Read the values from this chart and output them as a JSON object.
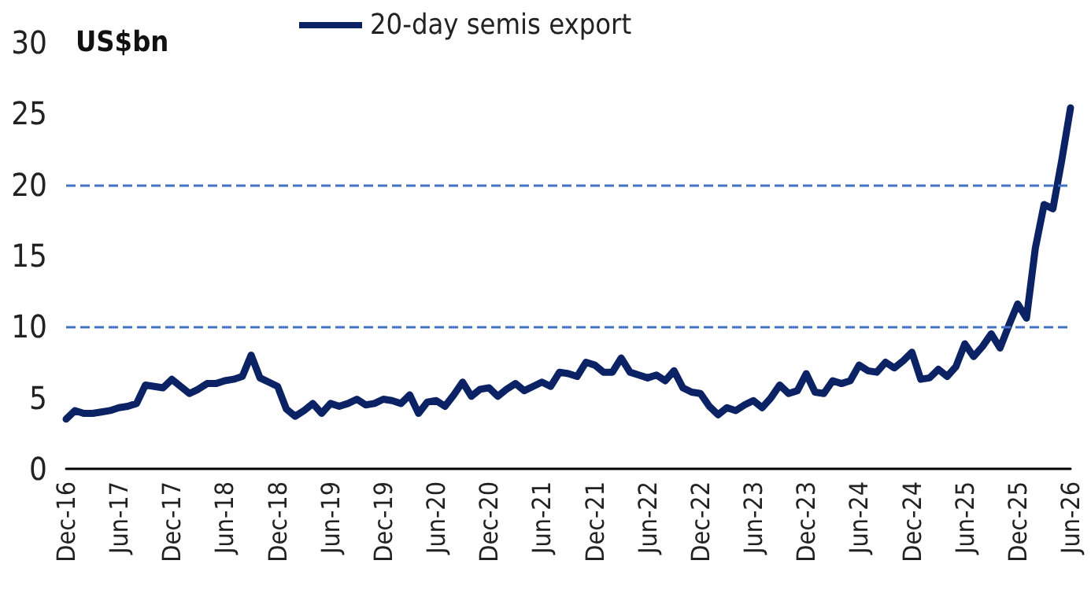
{
  "chart_data": {
    "type": "line",
    "ylabel": "US$bn",
    "categories": [
      "Dec-16",
      null,
      null,
      null,
      null,
      null,
      "Jun-17",
      null,
      null,
      null,
      null,
      null,
      "Dec-17",
      null,
      null,
      null,
      null,
      null,
      "Jun-18",
      null,
      null,
      null,
      null,
      null,
      "Dec-18",
      null,
      null,
      null,
      null,
      null,
      "Jun-19",
      null,
      null,
      null,
      null,
      null,
      "Dec-19",
      null,
      null,
      null,
      null,
      null,
      "Jun-20",
      null,
      null,
      null,
      null,
      null,
      "Dec-20",
      null,
      null,
      null,
      null,
      null,
      "Jun-21",
      null,
      null,
      null,
      null,
      null,
      "Dec-21",
      null,
      null,
      null,
      null,
      null,
      "Jun-22",
      null,
      null,
      null,
      null,
      null,
      "Dec-22",
      null,
      null,
      null,
      null,
      null,
      "Jun-23",
      null,
      null,
      null,
      null,
      null,
      "Dec-23",
      null,
      null,
      null,
      null,
      null,
      "Jun-24",
      null,
      null,
      null,
      null,
      null,
      "Dec-24",
      null,
      null,
      null,
      null,
      null,
      "Jun-25",
      null,
      null,
      null,
      null,
      null,
      "Dec-25",
      null,
      null,
      null,
      null,
      null,
      "Jun-26"
    ],
    "series": [
      {
        "name": "20-day semis export",
        "color": "#0b2265",
        "values": [
          3.5,
          4.1,
          3.9,
          3.9,
          4.0,
          4.1,
          4.3,
          4.4,
          4.6,
          5.9,
          5.8,
          5.7,
          6.3,
          5.8,
          5.3,
          5.6,
          6.0,
          6.0,
          6.2,
          6.3,
          6.5,
          8.0,
          6.4,
          6.1,
          5.8,
          4.2,
          3.7,
          4.1,
          4.6,
          3.9,
          4.6,
          4.4,
          4.6,
          4.9,
          4.5,
          4.6,
          4.9,
          4.8,
          4.6,
          5.2,
          3.9,
          4.7,
          4.8,
          4.4,
          5.2,
          6.1,
          5.1,
          5.6,
          5.7,
          5.1,
          5.6,
          6.0,
          5.5,
          5.8,
          6.1,
          5.8,
          6.8,
          6.7,
          6.5,
          7.5,
          7.3,
          6.8,
          6.8,
          7.8,
          6.8,
          6.6,
          6.4,
          6.6,
          6.2,
          6.9,
          5.7,
          5.4,
          5.3,
          4.4,
          3.8,
          4.3,
          4.1,
          4.5,
          4.8,
          4.3,
          5.0,
          5.9,
          5.3,
          5.5,
          6.7,
          5.4,
          5.3,
          6.2,
          6.0,
          6.2,
          7.3,
          6.9,
          6.8,
          7.5,
          7.1,
          7.6,
          8.2,
          6.3,
          6.4,
          7.0,
          6.5,
          7.2,
          8.8,
          7.9,
          8.6,
          9.5,
          8.5,
          10.1,
          11.6,
          10.6,
          15.5,
          18.6,
          18.3,
          21.7,
          25.4
        ]
      }
    ],
    "ylim": [
      0,
      30
    ],
    "yticks": [
      0,
      5,
      10,
      15,
      20,
      25,
      30
    ],
    "ref_lines": [
      {
        "axis": "y",
        "value": 10,
        "color": "#4472c4",
        "line_style": "dashed"
      },
      {
        "axis": "y",
        "value": 20,
        "color": "#4472c4",
        "line_style": "dashed"
      }
    ],
    "grid": false,
    "legend": "top",
    "marker": "none",
    "line_style": "solid"
  }
}
